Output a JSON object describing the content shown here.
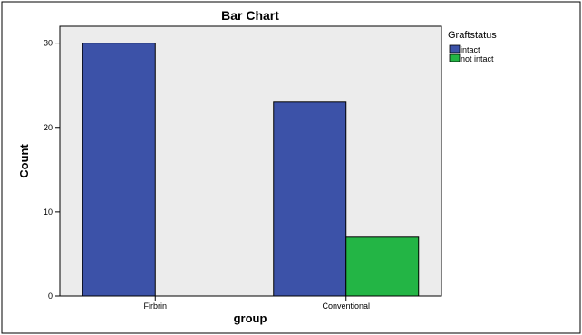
{
  "chart_data": {
    "type": "bar",
    "title": "Bar Chart",
    "xlabel": "group",
    "ylabel": "Count",
    "categories": [
      "Firbrin",
      "Conventional"
    ],
    "series": [
      {
        "name": "intact",
        "values": [
          30,
          23
        ],
        "color": "#3c52a8"
      },
      {
        "name": "not intact",
        "values": [
          0,
          7
        ],
        "color": "#23b545"
      }
    ],
    "ylim": [
      0,
      32
    ],
    "yticks": [
      "0",
      "10",
      "20",
      "30"
    ],
    "legend": {
      "title": "Graftstatus",
      "placement": "top-right"
    },
    "grid": false,
    "plot_background": "#ececec"
  }
}
